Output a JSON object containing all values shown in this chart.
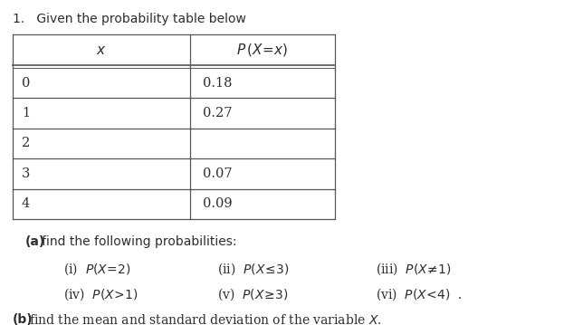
{
  "title": "1.   Given the probability table below",
  "table_rows": [
    [
      "0",
      "0.18"
    ],
    [
      "1",
      "0.27"
    ],
    [
      "2",
      ""
    ],
    [
      "3",
      "0.07"
    ],
    [
      "4",
      "0.09"
    ]
  ],
  "bg_color": "#ffffff",
  "text_color": "#2d2d2d",
  "table_line_color": "#555555",
  "title_color": "#3a3a3a",
  "part_label_color": "#2d2d2d",
  "fig_width": 6.33,
  "fig_height": 3.59,
  "dpi": 100
}
